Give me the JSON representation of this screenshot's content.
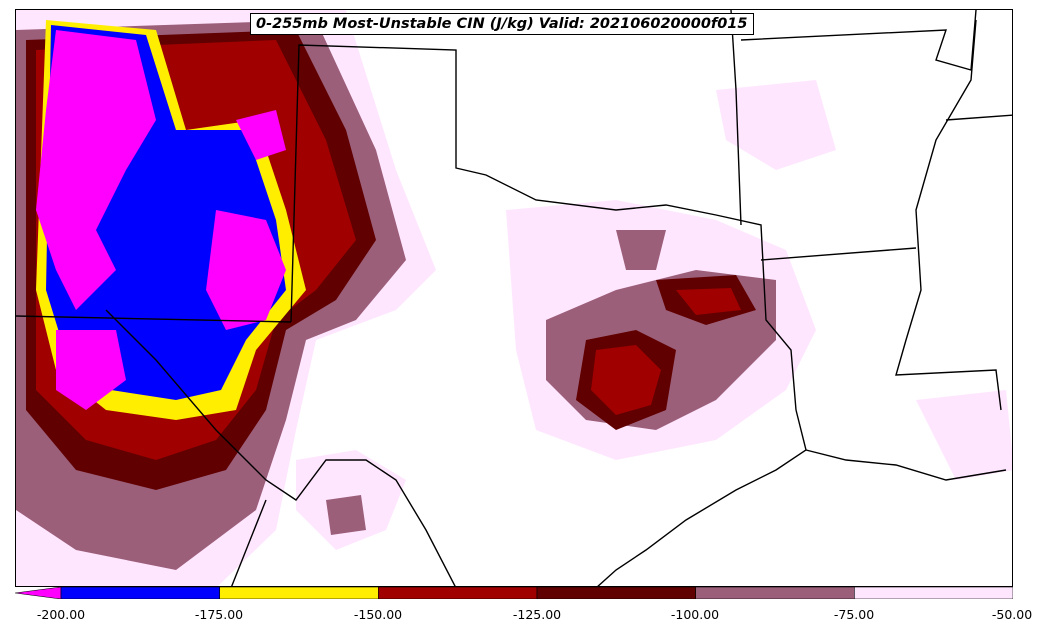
{
  "title": "0-255mb Most-Unstable CIN (J/kg) Valid: 202106020000f015",
  "colorbar": {
    "ticks": [
      "-200.00",
      "-175.00",
      "-150.00",
      "-125.00",
      "-100.00",
      "-75.00",
      "-50.00"
    ],
    "bins": [
      {
        "from": -225,
        "to": -200,
        "color": "#ff00ff"
      },
      {
        "from": -200,
        "to": -175,
        "color": "#0000ff"
      },
      {
        "from": -175,
        "to": -150,
        "color": "#ffee00"
      },
      {
        "from": -150,
        "to": -125,
        "color": "#a00000"
      },
      {
        "from": -125,
        "to": -100,
        "color": "#600000"
      },
      {
        "from": -100,
        "to": -75,
        "color": "#9c5f7a"
      },
      {
        "from": -75,
        "to": -50,
        "color": "#ffe6ff"
      }
    ]
  },
  "map": {
    "background_color": "#ffffff",
    "boundary_color": "#000000"
  }
}
